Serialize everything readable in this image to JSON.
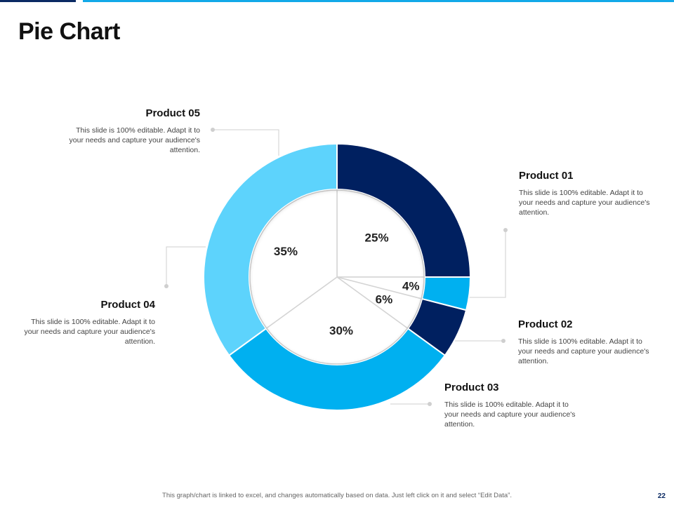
{
  "title": "Pie Chart",
  "footer": "This graph/chart is linked to excel, and changes automatically based on data. Just left click on it and select “Edit Data”.",
  "page_number": "22",
  "colors": {
    "navy": "#002060",
    "bright_blue": "#00b0f0",
    "light_blue": "#5dd3fc",
    "inner_fill": "#ffffff",
    "connector": "#cfcfcf"
  },
  "chart_data": {
    "type": "pie",
    "inner_pie_labels": [
      "25%",
      "4%",
      "6%",
      "30%",
      "35%"
    ],
    "outer_ring_products": [
      "Product 01",
      "Product 02",
      "Product 03",
      "Product 04",
      "Product 05"
    ],
    "categories": [
      "Product 01",
      "Product 02",
      "Product 03",
      "Product 04",
      "Product 05"
    ],
    "values": [
      25,
      4,
      6,
      30,
      35
    ],
    "legend": "callouts around chart"
  },
  "products": [
    {
      "name": "Product 01",
      "desc": "This slide is 100% editable. Adapt it to your needs and capture your audience's attention."
    },
    {
      "name": "Product 02",
      "desc": "This slide is 100% editable. Adapt it to your needs and capture your audience's attention."
    },
    {
      "name": "Product 03",
      "desc": "This slide is 100% editable. Adapt it to your needs and capture your audience's attention."
    },
    {
      "name": "Product 04",
      "desc": "This slide is 100% editable. Adapt it to your needs and capture your audience's attention."
    },
    {
      "name": "Product 05",
      "desc": "This slide is 100% editable. Adapt it to your needs and capture your audience's attention."
    }
  ]
}
